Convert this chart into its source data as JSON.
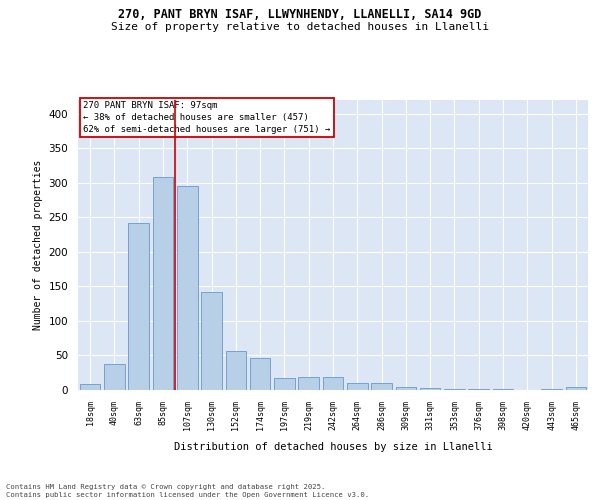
{
  "title1": "270, PANT BRYN ISAF, LLWYNHENDY, LLANELLI, SA14 9GD",
  "title2": "Size of property relative to detached houses in Llanelli",
  "xlabel": "Distribution of detached houses by size in Llanelli",
  "ylabel": "Number of detached properties",
  "footer": "Contains HM Land Registry data © Crown copyright and database right 2025.\nContains public sector information licensed under the Open Government Licence v3.0.",
  "annotation_line1": "270 PANT BRYN ISAF: 97sqm",
  "annotation_line2": "← 38% of detached houses are smaller (457)",
  "annotation_line3": "62% of semi-detached houses are larger (751) →",
  "bar_color": "#b8cfe8",
  "bar_edge_color": "#6699cc",
  "vline_color": "#cc0000",
  "annotation_box_edgecolor": "#cc0000",
  "background_color": "#dce6f5",
  "plot_bg_color": "#dce6f5",
  "categories": [
    "18sqm",
    "40sqm",
    "63sqm",
    "85sqm",
    "107sqm",
    "130sqm",
    "152sqm",
    "174sqm",
    "197sqm",
    "219sqm",
    "242sqm",
    "264sqm",
    "286sqm",
    "309sqm",
    "331sqm",
    "353sqm",
    "376sqm",
    "398sqm",
    "420sqm",
    "443sqm",
    "465sqm"
  ],
  "values": [
    8,
    38,
    242,
    308,
    295,
    142,
    57,
    47,
    18,
    19,
    19,
    10,
    10,
    5,
    3,
    2,
    2,
    1,
    0,
    2,
    4
  ],
  "vline_position": 3.5,
  "ylim": [
    0,
    420
  ],
  "yticks": [
    0,
    50,
    100,
    150,
    200,
    250,
    300,
    350,
    400
  ]
}
